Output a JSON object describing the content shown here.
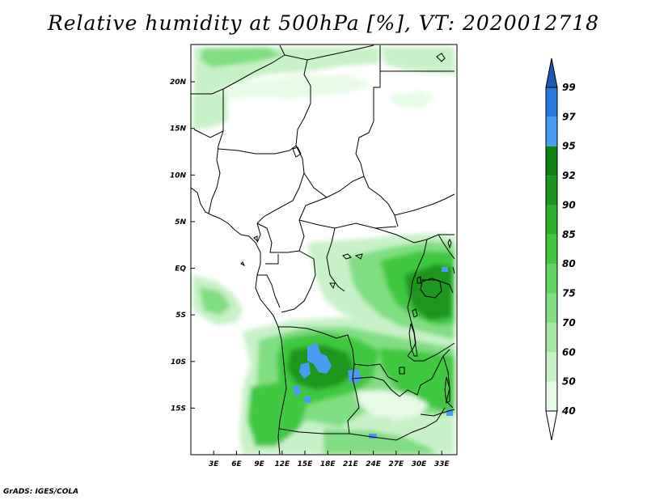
{
  "title": "Relative humidity at 500hPa [%], VT: 2020012718",
  "credit": "GrADS: IGES/COLA",
  "map": {
    "lon_range": [
      0,
      35
    ],
    "lat_range": [
      -20,
      24
    ],
    "lon_ticks": [
      {
        "value": 3,
        "label": "3E"
      },
      {
        "value": 6,
        "label": "6E"
      },
      {
        "value": 9,
        "label": "9E"
      },
      {
        "value": 12,
        "label": "12E"
      },
      {
        "value": 15,
        "label": "15E"
      },
      {
        "value": 18,
        "label": "18E"
      },
      {
        "value": 21,
        "label": "21E"
      },
      {
        "value": 24,
        "label": "24E"
      },
      {
        "value": 27,
        "label": "27E"
      },
      {
        "value": 30,
        "label": "30E"
      },
      {
        "value": 33,
        "label": "33E"
      }
    ],
    "lat_ticks": [
      {
        "value": 20,
        "label": "20N"
      },
      {
        "value": 15,
        "label": "15N"
      },
      {
        "value": 10,
        "label": "10N"
      },
      {
        "value": 5,
        "label": "5N"
      },
      {
        "value": 0,
        "label": "EQ"
      },
      {
        "value": -5,
        "label": "5S"
      },
      {
        "value": -10,
        "label": "10S"
      },
      {
        "value": -15,
        "label": "15S"
      }
    ]
  },
  "colorbar": {
    "levels": [
      "40",
      "50",
      "60",
      "70",
      "75",
      "80",
      "85",
      "90",
      "92",
      "95",
      "97",
      "99"
    ],
    "colors": [
      "#ffffff",
      "#e6fae6",
      "#c7f2c7",
      "#a5e8a5",
      "#82de82",
      "#5fd45f",
      "#40c840",
      "#2bb02b",
      "#1a961a",
      "#108010",
      "#4a9cf0",
      "#2a78dc",
      "#1e5ab4"
    ]
  },
  "field_colors": {
    "light": "#c7f2c7",
    "mid": "#82de82",
    "strong": "#40c840",
    "dark": "#1a961a",
    "blue": "#4a9cf0"
  }
}
